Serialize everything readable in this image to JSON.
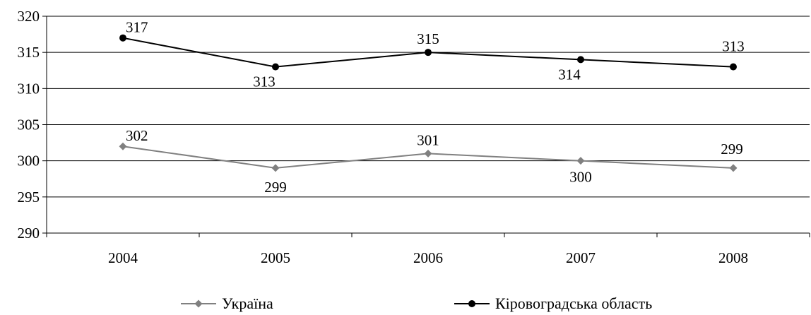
{
  "chart_data": {
    "type": "line",
    "x": [
      "2004",
      "2005",
      "2006",
      "2007",
      "2008"
    ],
    "ylim": [
      290,
      320
    ],
    "yticks": [
      290,
      295,
      300,
      305,
      310,
      315,
      320
    ],
    "grid": true,
    "legend_position": "bottom",
    "series": [
      {
        "name": "Україна",
        "values": [
          302,
          299,
          301,
          300,
          299
        ],
        "labels": [
          "302",
          "299",
          "301",
          "300",
          "299"
        ],
        "color": "#808080",
        "marker": "diamond"
      },
      {
        "name": "Кіровоградська область",
        "values": [
          317,
          313,
          315,
          314,
          313
        ],
        "labels": [
          "317",
          "313",
          "315",
          "314",
          "313"
        ],
        "color": "#000000",
        "marker": "circle"
      }
    ]
  }
}
